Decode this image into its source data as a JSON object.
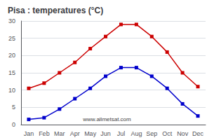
{
  "chart_data": {
    "type": "line",
    "title": "Pisa : temperatures (°C)",
    "categories": [
      "Jan",
      "Feb",
      "Mar",
      "Apr",
      "May",
      "Jun",
      "Jul",
      "Aug",
      "Sep",
      "Oct",
      "Nov",
      "Dec"
    ],
    "series": [
      {
        "color": "#cc0000",
        "values": [
          10.5,
          12.0,
          15.0,
          18.0,
          22.0,
          25.5,
          29.0,
          29.0,
          25.5,
          21.0,
          15.0,
          11.0
        ]
      },
      {
        "color": "#0000cc",
        "values": [
          1.5,
          2.0,
          4.5,
          7.5,
          10.5,
          14.0,
          16.5,
          16.5,
          14.0,
          10.5,
          6.0,
          2.5
        ]
      }
    ],
    "marker": "square",
    "ylim": [
      0,
      30
    ],
    "yticks": [
      0,
      5,
      10,
      15,
      20,
      25,
      30
    ],
    "grid": true,
    "annotations": [
      "www.allmetsat.com"
    ]
  }
}
